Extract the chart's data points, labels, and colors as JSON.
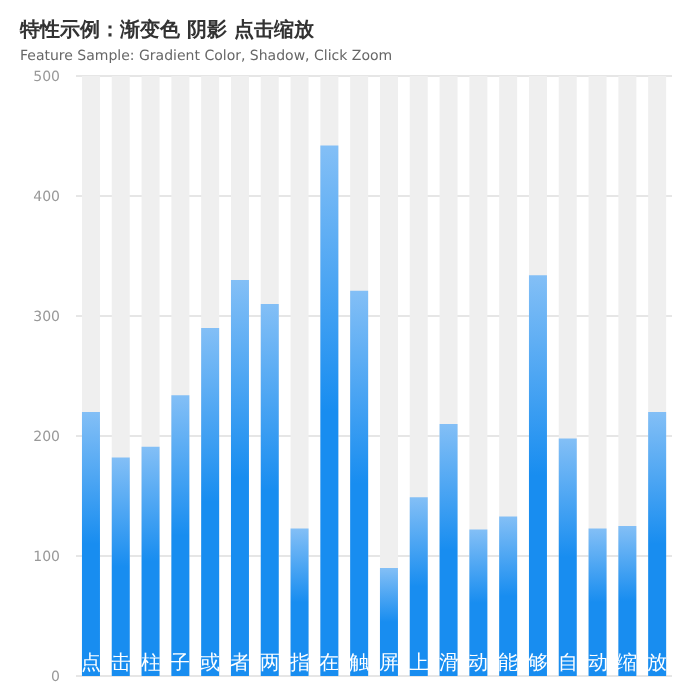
{
  "chart_data": {
    "type": "bar",
    "title": "特性示例：渐变色 阴影 点击缩放",
    "subtitle": "Feature Sample: Gradient Color, Shadow, Click Zoom",
    "categories": [
      "点",
      "击",
      "柱",
      "子",
      "或",
      "者",
      "两",
      "指",
      "在",
      "触",
      "屏",
      "上",
      "滑",
      "动",
      "能",
      "够",
      "自",
      "动",
      "缩",
      "放"
    ],
    "values": [
      220,
      182,
      191,
      234,
      290,
      330,
      310,
      123,
      442,
      321,
      90,
      149,
      210,
      122,
      133,
      334,
      198,
      123,
      125,
      220
    ],
    "color": "#188df0",
    "ylim": [
      0,
      500
    ],
    "yticks": [
      0,
      100,
      200,
      300,
      400,
      500
    ],
    "grid": "y"
  }
}
